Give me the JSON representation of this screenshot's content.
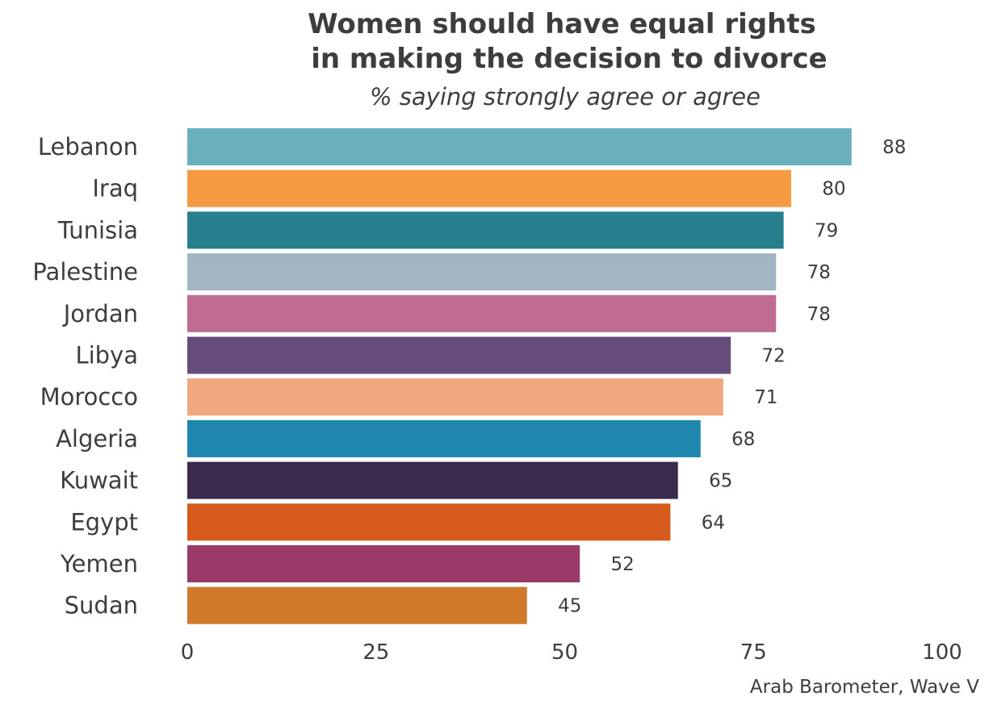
{
  "chart_data": {
    "type": "bar",
    "orientation": "horizontal",
    "title_lines": [
      "Women should have equal rights",
      "in making the decision to divorce"
    ],
    "subtitle": "% saying strongly agree or agree",
    "caption": "Arab Barometer, Wave V",
    "xlabel": "",
    "ylabel": "",
    "xlim": [
      0,
      100
    ],
    "xticks": [
      0,
      25,
      50,
      75,
      100
    ],
    "grid": false,
    "legend": "none",
    "categories": [
      "Lebanon",
      "Iraq",
      "Tunisia",
      "Palestine",
      "Jordan",
      "Libya",
      "Morocco",
      "Algeria",
      "Kuwait",
      "Egypt",
      "Yemen",
      "Sudan"
    ],
    "values": [
      88,
      80,
      79,
      78,
      78,
      72,
      71,
      68,
      65,
      64,
      52,
      45
    ],
    "colors": [
      "#6aafbc",
      "#f59a40",
      "#277e8d",
      "#a1b5c4",
      "#c06b92",
      "#654c7b",
      "#f2a87f",
      "#1f86ad",
      "#3c2a4d",
      "#d55a1b",
      "#9b3a68",
      "#d0792b"
    ]
  }
}
